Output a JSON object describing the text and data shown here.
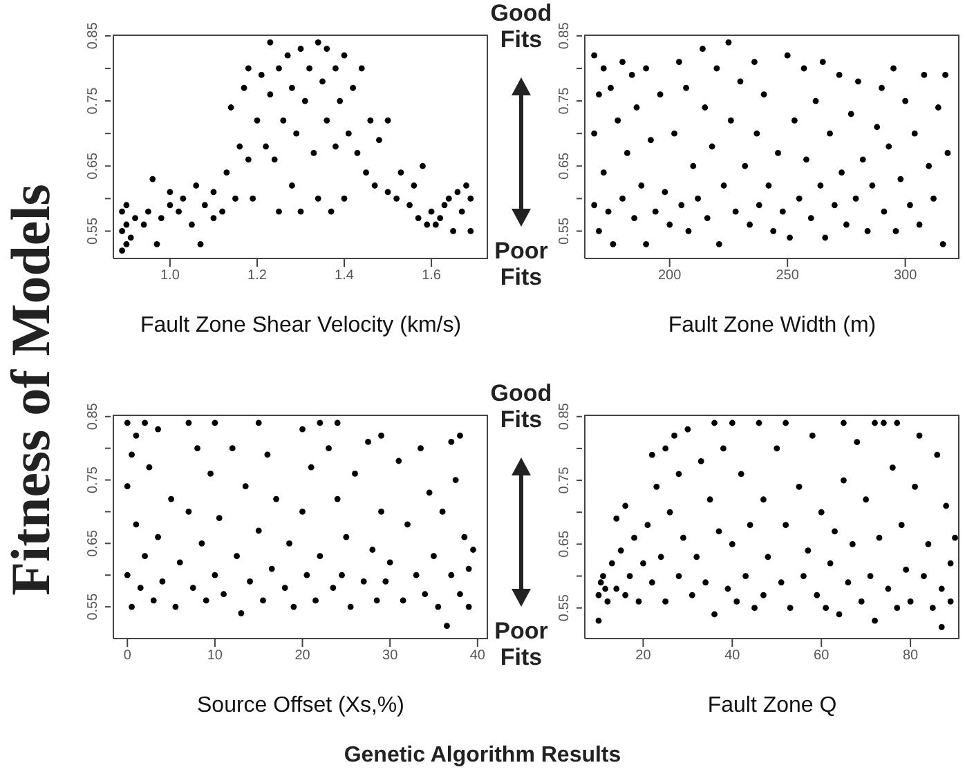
{
  "chart_data": [
    {
      "type": "scatter",
      "ylabel": "Fitness of Models",
      "xlabel": "Fault Zone Shear Velocity (km/s)",
      "marker": "circle",
      "annotations": [
        "Good Fits",
        "Poor Fits"
      ],
      "xlim": [
        0.87,
        1.73
      ],
      "xticks": [
        {
          "value": 1,
          "label": "1.0"
        },
        1.2,
        1.4,
        1.6
      ],
      "ylim": [
        0.508,
        0.852
      ],
      "yticks": [
        0.55,
        {
          "value": 0.6,
          "label": null
        },
        0.65,
        {
          "value": 0.7,
          "label": null
        },
        0.75,
        {
          "value": 0.8,
          "label": null
        },
        0.85
      ],
      "series": [
        {
          "color": "#000000",
          "x": [
            0.89,
            0.89,
            0.89,
            0.9,
            0.9,
            0.9,
            0.91,
            0.92,
            0.94,
            0.95,
            0.96,
            0.97,
            0.98,
            1.0,
            1.0,
            1.02,
            1.03,
            1.05,
            1.06,
            1.07,
            1.08,
            1.1,
            1.1,
            1.12,
            1.13,
            1.14,
            1.15,
            1.16,
            1.17,
            1.18,
            1.18,
            1.19,
            1.2,
            1.21,
            1.22,
            1.23,
            1.23,
            1.24,
            1.25,
            1.25,
            1.26,
            1.27,
            1.28,
            1.28,
            1.29,
            1.3,
            1.3,
            1.31,
            1.32,
            1.33,
            1.34,
            1.34,
            1.35,
            1.36,
            1.36,
            1.37,
            1.38,
            1.38,
            1.39,
            1.4,
            1.4,
            1.41,
            1.42,
            1.43,
            1.44,
            1.45,
            1.46,
            1.47,
            1.48,
            1.5,
            1.5,
            1.52,
            1.53,
            1.55,
            1.56,
            1.57,
            1.58,
            1.59,
            1.6,
            1.61,
            1.62,
            1.63,
            1.64,
            1.65,
            1.66,
            1.67,
            1.68,
            1.69,
            1.69
          ],
          "values": [
            0.52,
            0.55,
            0.58,
            0.53,
            0.56,
            0.59,
            0.54,
            0.57,
            0.56,
            0.58,
            0.63,
            0.53,
            0.57,
            0.59,
            0.61,
            0.58,
            0.6,
            0.56,
            0.62,
            0.53,
            0.59,
            0.57,
            0.61,
            0.58,
            0.64,
            0.74,
            0.6,
            0.68,
            0.77,
            0.8,
            0.66,
            0.6,
            0.72,
            0.79,
            0.68,
            0.84,
            0.76,
            0.66,
            0.8,
            0.58,
            0.72,
            0.82,
            0.62,
            0.77,
            0.7,
            0.83,
            0.58,
            0.75,
            0.8,
            0.67,
            0.84,
            0.6,
            0.78,
            0.72,
            0.83,
            0.58,
            0.8,
            0.68,
            0.75,
            0.82,
            0.6,
            0.7,
            0.77,
            0.67,
            0.8,
            0.64,
            0.72,
            0.62,
            0.69,
            0.61,
            0.72,
            0.6,
            0.64,
            0.59,
            0.62,
            0.57,
            0.65,
            0.56,
            0.58,
            0.56,
            0.57,
            0.59,
            0.6,
            0.55,
            0.61,
            0.58,
            0.62,
            0.6,
            0.55
          ]
        }
      ]
    },
    {
      "type": "scatter",
      "xlabel": "Fault Zone Width (m)",
      "marker": "circle",
      "xlim": [
        164,
        323
      ],
      "xticks": [
        200,
        250,
        300
      ],
      "ylim": [
        0.508,
        0.852
      ],
      "yticks": [
        0.55,
        {
          "value": 0.6,
          "label": null
        },
        0.65,
        {
          "value": 0.7,
          "label": null
        },
        0.75,
        {
          "value": 0.8,
          "label": null
        },
        0.85
      ],
      "series": [
        {
          "color": "#000000",
          "x": [
            168,
            168,
            168,
            170,
            170,
            172,
            172,
            174,
            175,
            176,
            178,
            180,
            180,
            182,
            184,
            185,
            186,
            188,
            190,
            190,
            192,
            194,
            196,
            198,
            200,
            202,
            204,
            205,
            207,
            208,
            210,
            212,
            214,
            215,
            216,
            218,
            220,
            221,
            223,
            225,
            226,
            228,
            230,
            232,
            234,
            236,
            237,
            238,
            240,
            242,
            244,
            246,
            248,
            250,
            251,
            253,
            255,
            257,
            258,
            260,
            262,
            264,
            265,
            266,
            268,
            270,
            272,
            273,
            275,
            277,
            279,
            280,
            282,
            284,
            286,
            288,
            290,
            291,
            293,
            295,
            296,
            298,
            300,
            302,
            304,
            306,
            308,
            310,
            312,
            314,
            316,
            317,
            318
          ],
          "values": [
            0.82,
            0.7,
            0.59,
            0.76,
            0.55,
            0.8,
            0.64,
            0.58,
            0.77,
            0.53,
            0.72,
            0.81,
            0.6,
            0.67,
            0.79,
            0.57,
            0.74,
            0.62,
            0.8,
            0.53,
            0.69,
            0.58,
            0.76,
            0.61,
            0.56,
            0.7,
            0.81,
            0.59,
            0.77,
            0.55,
            0.65,
            0.6,
            0.83,
            0.74,
            0.57,
            0.68,
            0.8,
            0.53,
            0.62,
            0.84,
            0.72,
            0.58,
            0.78,
            0.65,
            0.56,
            0.81,
            0.7,
            0.59,
            0.76,
            0.62,
            0.55,
            0.67,
            0.58,
            0.82,
            0.54,
            0.72,
            0.6,
            0.8,
            0.66,
            0.57,
            0.75,
            0.62,
            0.81,
            0.54,
            0.7,
            0.59,
            0.79,
            0.64,
            0.56,
            0.73,
            0.6,
            0.78,
            0.66,
            0.55,
            0.62,
            0.71,
            0.77,
            0.58,
            0.68,
            0.8,
            0.55,
            0.63,
            0.75,
            0.59,
            0.7,
            0.56,
            0.79,
            0.65,
            0.6,
            0.74,
            0.53,
            0.79,
            0.67
          ]
        }
      ]
    },
    {
      "type": "scatter",
      "xlabel": "Source Offset (Xs,%)",
      "marker": "circle",
      "annotations": [
        "Good Fits",
        "Poor Fits"
      ],
      "xlim": [
        -1.6,
        41.2
      ],
      "xticks": [
        0,
        10,
        20,
        30,
        40
      ],
      "ylim": [
        0.5,
        0.853
      ],
      "yticks": [
        0.55,
        {
          "value": 0.6,
          "label": null
        },
        0.65,
        {
          "value": 0.7,
          "label": null
        },
        0.75,
        {
          "value": 0.8,
          "label": null
        },
        0.85
      ],
      "series": [
        {
          "color": "#000000",
          "x": [
            0,
            0,
            0,
            0.5,
            0.5,
            1,
            1,
            1.5,
            2,
            2,
            2.5,
            3,
            3.5,
            3.5,
            4,
            5,
            5.5,
            6,
            7,
            7,
            7.5,
            8,
            8.5,
            9,
            9.5,
            10,
            10,
            10.5,
            11,
            12,
            12.5,
            13,
            13.5,
            14,
            15,
            15,
            15.5,
            16,
            16.5,
            17,
            18,
            18.5,
            19,
            20,
            20,
            20.5,
            21,
            21.5,
            22,
            22,
            23,
            23.5,
            24,
            24,
            24.5,
            25,
            25.5,
            26,
            27,
            27.5,
            28,
            28.5,
            29,
            29,
            29.5,
            30,
            31,
            31.5,
            32,
            33,
            33.5,
            34,
            34.5,
            35,
            35.5,
            36,
            36.5,
            37,
            37,
            37.5,
            38,
            38,
            38.5,
            39,
            39,
            39.5
          ],
          "values": [
            0.84,
            0.74,
            0.6,
            0.79,
            0.55,
            0.82,
            0.68,
            0.58,
            0.84,
            0.63,
            0.77,
            0.56,
            0.83,
            0.66,
            0.59,
            0.72,
            0.55,
            0.62,
            0.84,
            0.7,
            0.58,
            0.8,
            0.65,
            0.56,
            0.76,
            0.84,
            0.6,
            0.69,
            0.57,
            0.8,
            0.63,
            0.54,
            0.74,
            0.59,
            0.84,
            0.67,
            0.56,
            0.79,
            0.61,
            0.72,
            0.58,
            0.65,
            0.55,
            0.83,
            0.7,
            0.6,
            0.77,
            0.56,
            0.84,
            0.63,
            0.8,
            0.58,
            0.84,
            0.72,
            0.6,
            0.66,
            0.55,
            0.76,
            0.59,
            0.81,
            0.64,
            0.56,
            0.82,
            0.7,
            0.59,
            0.62,
            0.78,
            0.56,
            0.68,
            0.6,
            0.8,
            0.57,
            0.73,
            0.63,
            0.55,
            0.7,
            0.52,
            0.81,
            0.6,
            0.75,
            0.82,
            0.57,
            0.66,
            0.61,
            0.55,
            0.64
          ]
        }
      ]
    },
    {
      "type": "scatter",
      "xlabel": "Fault Zone Q",
      "marker": "circle",
      "annotations": [
        "Genetic Algorithm Results"
      ],
      "xlim": [
        6.9,
        91
      ],
      "xticks": [
        20,
        40,
        60,
        80
      ],
      "ylim": [
        0.502,
        0.853
      ],
      "yticks": [
        0.55,
        {
          "value": 0.6,
          "label": null
        },
        0.65,
        {
          "value": 0.7,
          "label": null
        },
        0.75,
        {
          "value": 0.8,
          "label": null
        },
        0.85
      ],
      "series": [
        {
          "color": "#000000",
          "x": [
            10,
            10,
            10.5,
            11,
            11.5,
            12,
            13,
            14,
            14,
            15,
            16,
            16,
            17,
            18,
            19,
            20,
            21,
            22,
            22,
            23,
            24,
            25,
            25,
            26,
            27,
            28,
            28,
            29,
            30,
            31,
            32,
            33,
            34,
            35,
            36,
            36,
            37,
            38,
            39,
            40,
            40,
            41,
            42,
            43,
            44,
            45,
            46,
            47,
            47,
            48,
            50,
            51,
            52,
            52,
            53,
            55,
            56,
            57,
            58,
            59,
            60,
            61,
            62,
            63,
            64,
            65,
            65,
            66,
            67,
            68,
            69,
            70,
            71,
            72,
            72,
            73,
            74,
            75,
            76,
            77,
            77,
            78,
            79,
            80,
            81,
            82,
            83,
            84,
            85,
            86,
            87,
            87,
            88,
            89,
            89,
            90
          ],
          "values": [
            0.53,
            0.57,
            0.59,
            0.6,
            0.58,
            0.56,
            0.62,
            0.58,
            0.69,
            0.64,
            0.57,
            0.71,
            0.6,
            0.66,
            0.56,
            0.62,
            0.68,
            0.79,
            0.59,
            0.74,
            0.63,
            0.8,
            0.56,
            0.7,
            0.82,
            0.6,
            0.76,
            0.66,
            0.83,
            0.57,
            0.63,
            0.78,
            0.59,
            0.72,
            0.84,
            0.54,
            0.67,
            0.8,
            0.58,
            0.84,
            0.65,
            0.56,
            0.76,
            0.6,
            0.68,
            0.55,
            0.84,
            0.72,
            0.57,
            0.63,
            0.8,
            0.59,
            0.84,
            0.68,
            0.55,
            0.74,
            0.6,
            0.64,
            0.82,
            0.57,
            0.7,
            0.55,
            0.62,
            0.67,
            0.54,
            0.84,
            0.75,
            0.59,
            0.65,
            0.81,
            0.56,
            0.72,
            0.6,
            0.84,
            0.53,
            0.66,
            0.84,
            0.58,
            0.77,
            0.84,
            0.55,
            0.68,
            0.61,
            0.56,
            0.74,
            0.82,
            0.6,
            0.65,
            0.55,
            0.79,
            0.58,
            0.52,
            0.71,
            0.62,
            0.56,
            0.66
          ]
        }
      ]
    }
  ]
}
